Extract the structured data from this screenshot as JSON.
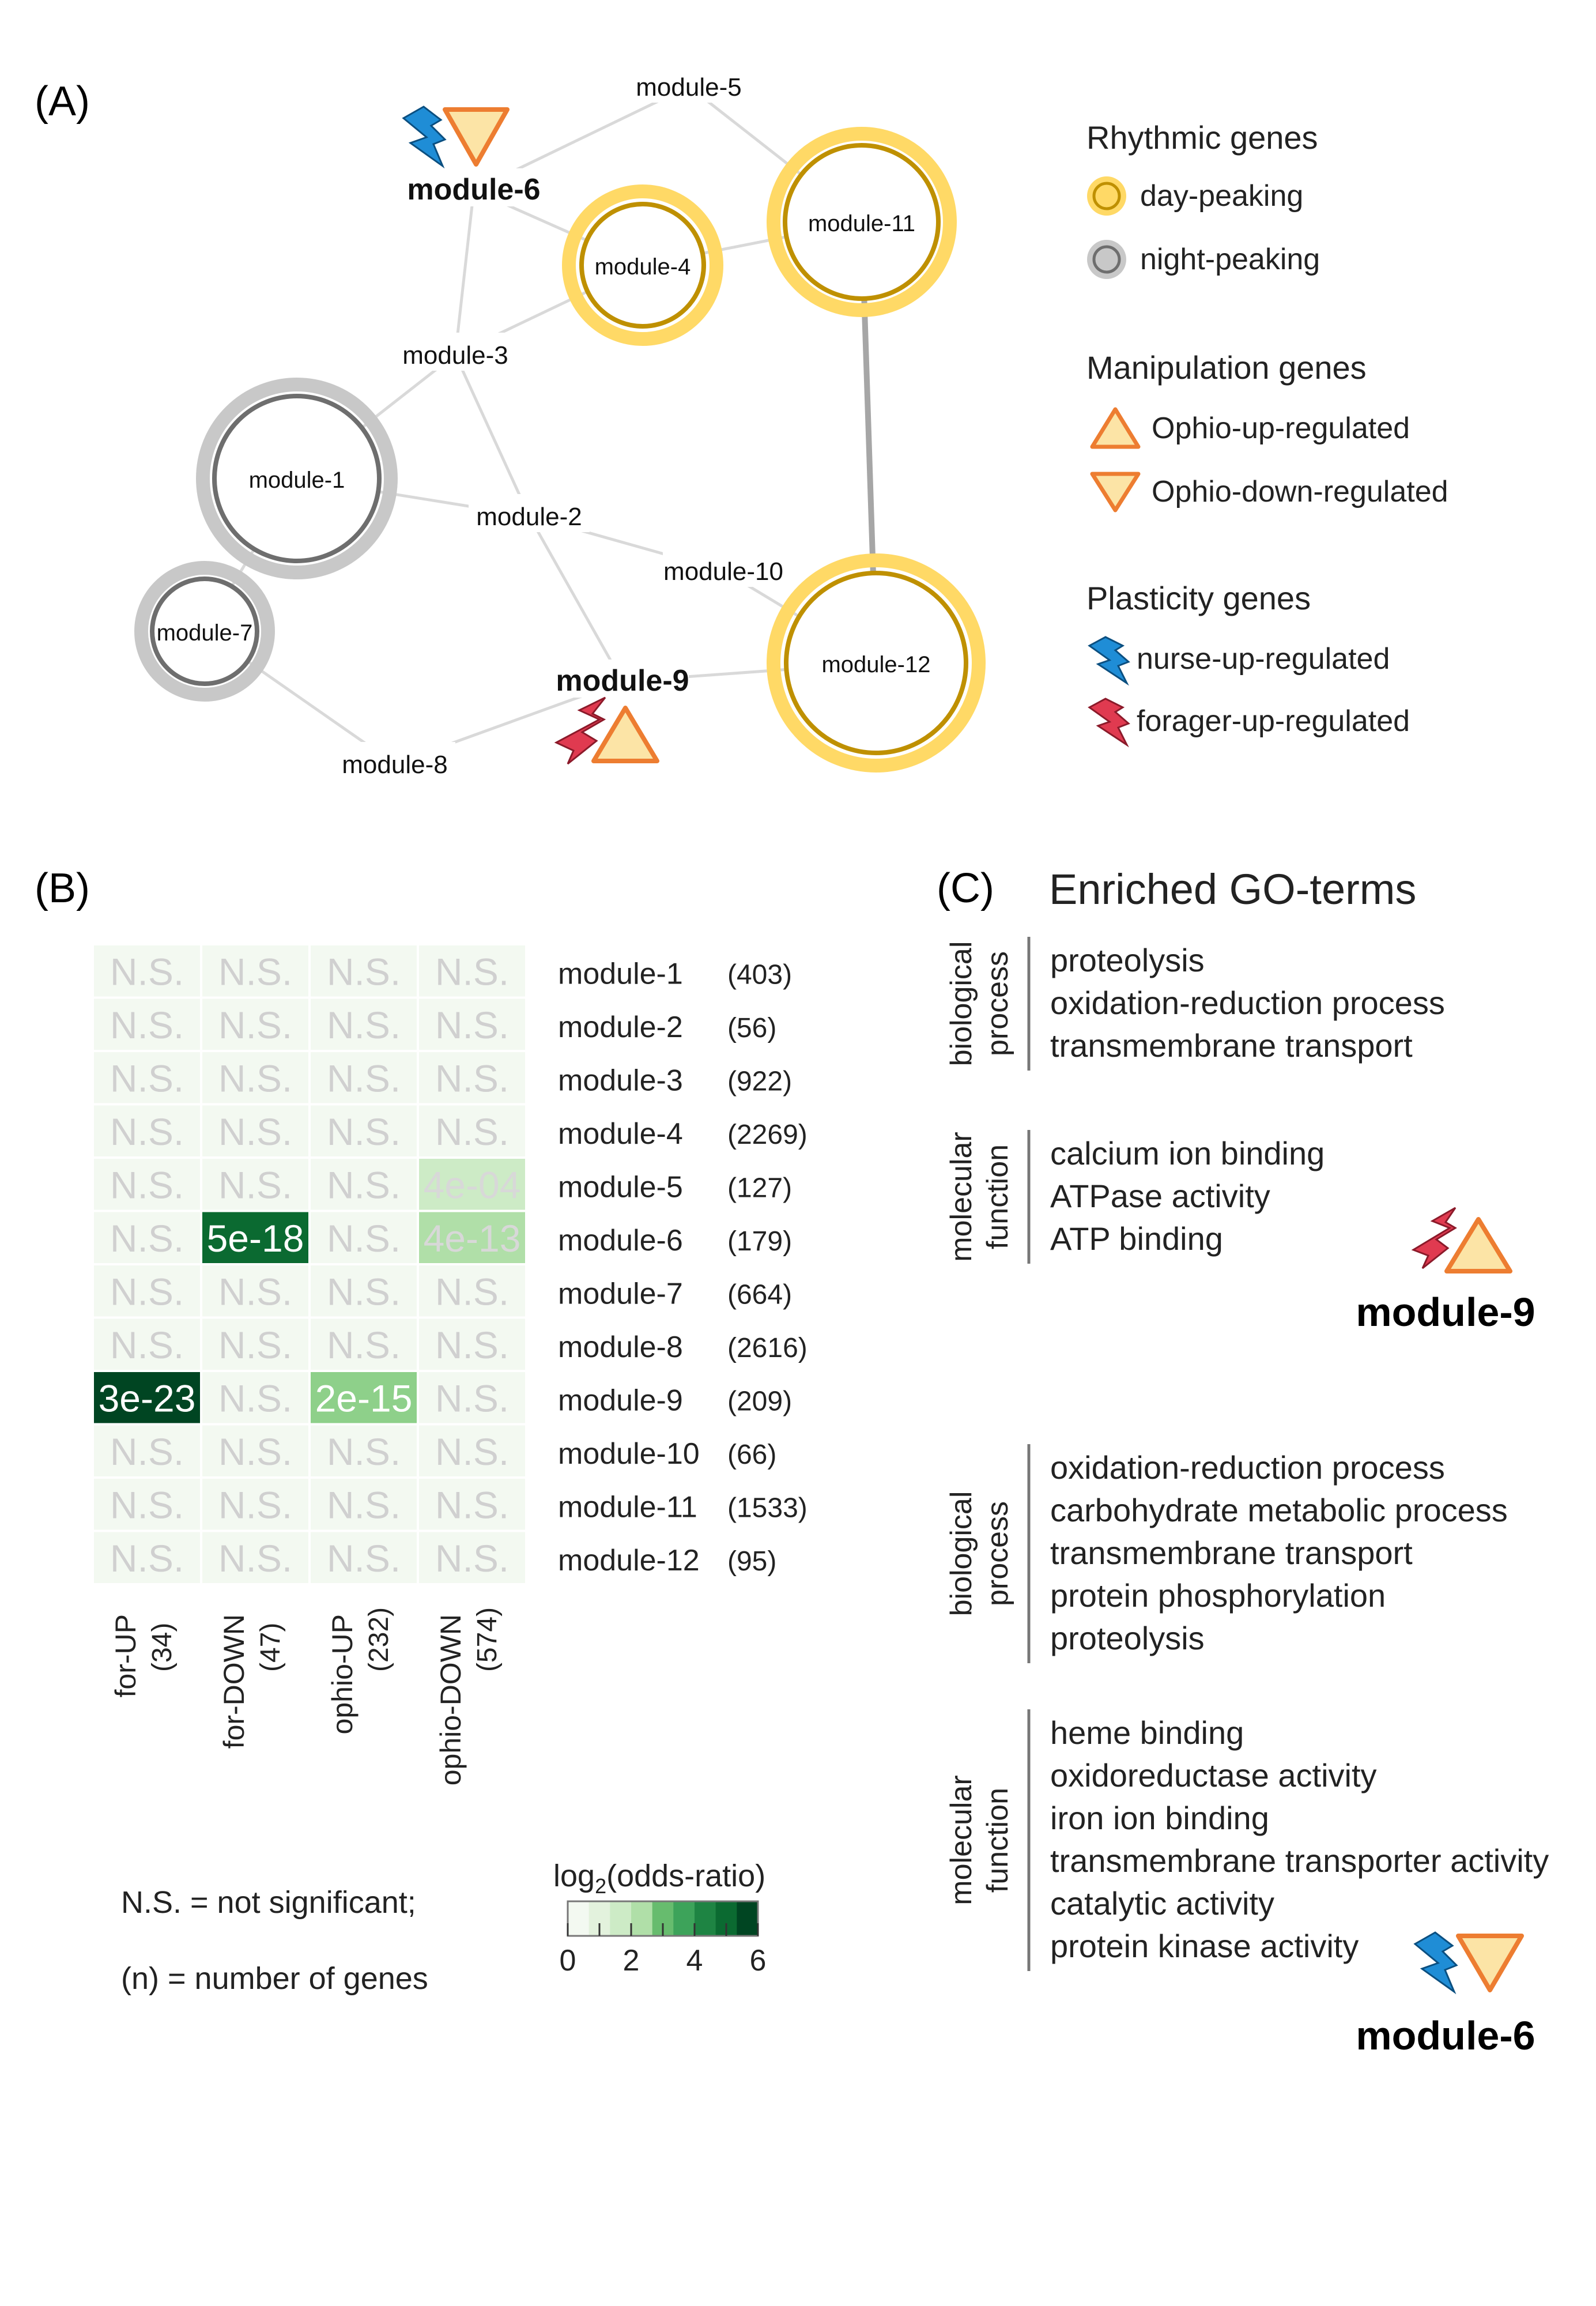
{
  "panels": {
    "a": "(A)",
    "b": "(B)",
    "c": "(C)"
  },
  "network": {
    "modules": [
      {
        "id": "module-1",
        "ring": "night"
      },
      {
        "id": "module-2",
        "ring": "none"
      },
      {
        "id": "module-3",
        "ring": "none"
      },
      {
        "id": "module-4",
        "ring": "day"
      },
      {
        "id": "module-5",
        "ring": "none"
      },
      {
        "id": "module-6",
        "ring": "none",
        "bold": true
      },
      {
        "id": "module-7",
        "ring": "night"
      },
      {
        "id": "module-8",
        "ring": "none"
      },
      {
        "id": "module-9",
        "ring": "none",
        "bold": true
      },
      {
        "id": "module-10",
        "ring": "none"
      },
      {
        "id": "module-11",
        "ring": "day"
      },
      {
        "id": "module-12",
        "ring": "day"
      }
    ],
    "edges": [
      [
        "module-6",
        "module-5"
      ],
      [
        "module-6",
        "module-4"
      ],
      [
        "module-6",
        "module-3"
      ],
      [
        "module-5",
        "module-11"
      ],
      [
        "module-4",
        "module-11"
      ],
      [
        "module-4",
        "module-3"
      ],
      [
        "module-3",
        "module-1"
      ],
      [
        "module-3",
        "module-2"
      ],
      [
        "module-1",
        "module-2"
      ],
      [
        "module-1",
        "module-7"
      ],
      [
        "module-2",
        "module-9"
      ],
      [
        "module-2",
        "module-10"
      ],
      [
        "module-10",
        "module-12"
      ],
      [
        "module-9",
        "module-12"
      ],
      [
        "module-9",
        "module-8"
      ],
      [
        "module-7",
        "module-8"
      ],
      [
        "module-11",
        "module-12"
      ]
    ],
    "strong_edge": [
      "module-11",
      "module-12"
    ],
    "markers": {
      "module-6": [
        "nurse-up-bolt-icon",
        "ophio-down-triangle-icon"
      ],
      "module-9": [
        "forager-up-bolt-icon",
        "ophio-up-triangle-icon"
      ]
    }
  },
  "legend": {
    "rhythmic_title": "Rhythmic genes",
    "day": "day-peaking",
    "night": "night-peaking",
    "manip_title": "Manipulation genes",
    "ophio_up": "Ophio-up-regulated",
    "ophio_down": "Ophio-down-regulated",
    "plasticity_title": "Plasticity genes",
    "nurse_up": "nurse-up-regulated",
    "forager_up": "forager-up-regulated"
  },
  "colors": {
    "day_outer": "#FFD966",
    "day_inner": "#BF9000",
    "night_outer": "#C8C8C8",
    "night_inner": "#6E6E6E",
    "triangle_fill": "#FCE4A6",
    "triangle_stroke": "#ED7D31",
    "nurse_bolt": "#1F8DD6",
    "forager_bolt": "#E03A50",
    "edge": "#D9D9D9",
    "strong_edge": "#A6A6A6",
    "ns_text": "#D0D0D0",
    "ns_cell": "#F3F9F1"
  },
  "chart_data": {
    "type": "heatmap",
    "columns": [
      {
        "label": "for-UP",
        "n": "(34)"
      },
      {
        "label": "for-DOWN",
        "n": "(47)"
      },
      {
        "label": "ophio-UP",
        "n": "(232)"
      },
      {
        "label": "ophio-DOWN",
        "n": "(574)"
      }
    ],
    "rows": [
      {
        "module": "module-1",
        "n": "(403)",
        "cells": [
          {
            "text": "N.S.",
            "log2or": 0
          },
          {
            "text": "N.S.",
            "log2or": 0
          },
          {
            "text": "N.S.",
            "log2or": 0
          },
          {
            "text": "N.S.",
            "log2or": 0
          }
        ]
      },
      {
        "module": "module-2",
        "n": "(56)",
        "cells": [
          {
            "text": "N.S.",
            "log2or": 0
          },
          {
            "text": "N.S.",
            "log2or": 0
          },
          {
            "text": "N.S.",
            "log2or": 0
          },
          {
            "text": "N.S.",
            "log2or": 0
          }
        ]
      },
      {
        "module": "module-3",
        "n": "(922)",
        "cells": [
          {
            "text": "N.S.",
            "log2or": 0
          },
          {
            "text": "N.S.",
            "log2or": 0
          },
          {
            "text": "N.S.",
            "log2or": 0
          },
          {
            "text": "N.S.",
            "log2or": 0
          }
        ]
      },
      {
        "module": "module-4",
        "n": "(2269)",
        "cells": [
          {
            "text": "N.S.",
            "log2or": 0
          },
          {
            "text": "N.S.",
            "log2or": 0
          },
          {
            "text": "N.S.",
            "log2or": 0
          },
          {
            "text": "N.S.",
            "log2or": 0
          }
        ]
      },
      {
        "module": "module-5",
        "n": "(127)",
        "cells": [
          {
            "text": "N.S.",
            "log2or": 0
          },
          {
            "text": "N.S.",
            "log2or": 0
          },
          {
            "text": "N.S.",
            "log2or": 0
          },
          {
            "text": "4e-04",
            "log2or": 1.3
          }
        ]
      },
      {
        "module": "module-6",
        "n": "(179)",
        "cells": [
          {
            "text": "N.S.",
            "log2or": 0
          },
          {
            "text": "5e-18",
            "log2or": 5.5
          },
          {
            "text": "N.S.",
            "log2or": 0
          },
          {
            "text": "4e-13",
            "log2or": 2.0
          }
        ]
      },
      {
        "module": "module-7",
        "n": "(664)",
        "cells": [
          {
            "text": "N.S.",
            "log2or": 0
          },
          {
            "text": "N.S.",
            "log2or": 0
          },
          {
            "text": "N.S.",
            "log2or": 0
          },
          {
            "text": "N.S.",
            "log2or": 0
          }
        ]
      },
      {
        "module": "module-8",
        "n": "(2616)",
        "cells": [
          {
            "text": "N.S.",
            "log2or": 0
          },
          {
            "text": "N.S.",
            "log2or": 0
          },
          {
            "text": "N.S.",
            "log2or": 0
          },
          {
            "text": "N.S.",
            "log2or": 0
          }
        ]
      },
      {
        "module": "module-9",
        "n": "(209)",
        "cells": [
          {
            "text": "3e-23",
            "log2or": 6.0
          },
          {
            "text": "N.S.",
            "log2or": 0
          },
          {
            "text": "2e-15",
            "log2or": 2.8
          },
          {
            "text": "N.S.",
            "log2or": 0
          }
        ]
      },
      {
        "module": "module-10",
        "n": "(66)",
        "cells": [
          {
            "text": "N.S.",
            "log2or": 0
          },
          {
            "text": "N.S.",
            "log2or": 0
          },
          {
            "text": "N.S.",
            "log2or": 0
          },
          {
            "text": "N.S.",
            "log2or": 0
          }
        ]
      },
      {
        "module": "module-11",
        "n": "(1533)",
        "cells": [
          {
            "text": "N.S.",
            "log2or": 0
          },
          {
            "text": "N.S.",
            "log2or": 0
          },
          {
            "text": "N.S.",
            "log2or": 0
          },
          {
            "text": "N.S.",
            "log2or": 0
          }
        ]
      },
      {
        "module": "module-12",
        "n": "(95)",
        "cells": [
          {
            "text": "N.S.",
            "log2or": 0
          },
          {
            "text": "N.S.",
            "log2or": 0
          },
          {
            "text": "N.S.",
            "log2or": 0
          },
          {
            "text": "N.S.",
            "log2or": 0
          }
        ]
      }
    ],
    "colorbar": {
      "title_pre": "log",
      "title_sub": "2",
      "title_post": "(odds-ratio)",
      "ticks": [
        "0",
        "2",
        "4",
        "6"
      ],
      "range": [
        0,
        6
      ],
      "steps": 9
    },
    "notes": [
      "N.S. = not significant;",
      "(n) = number of genes"
    ]
  },
  "go": {
    "title": "Enriched GO-terms",
    "blocks": [
      {
        "category": [
          "biological",
          "process"
        ],
        "terms": [
          "proteolysis",
          "oxidation-reduction process",
          "transmembrane transport"
        ]
      },
      {
        "category": [
          "molecular",
          "function"
        ],
        "terms": [
          "calcium ion binding",
          "ATPase activity",
          "ATP binding"
        ]
      },
      {
        "category": [
          "biological",
          "process"
        ],
        "terms": [
          "oxidation-reduction process",
          "carbohydrate metabolic process",
          "transmembrane transport",
          "protein phosphorylation",
          "proteolysis"
        ]
      },
      {
        "category": [
          "molecular",
          "function"
        ],
        "terms": [
          "heme binding",
          "oxidoreductase activity",
          "iron ion binding",
          "transmembrane transporter activity",
          "catalytic activity",
          "protein kinase activity"
        ]
      }
    ],
    "labels": [
      "module-9",
      "module-6"
    ]
  }
}
